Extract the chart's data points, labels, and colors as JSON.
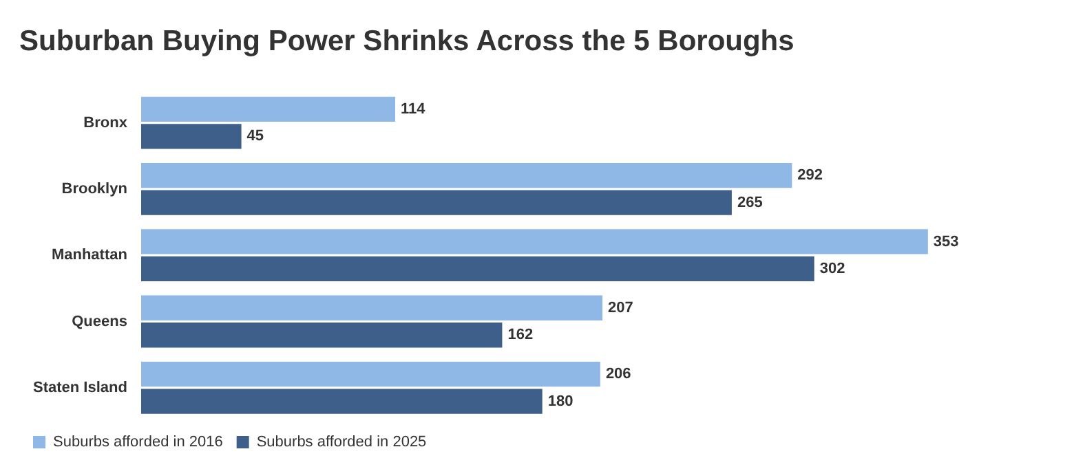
{
  "chart_data": {
    "type": "bar",
    "orientation": "horizontal",
    "title": "Suburban Buying Power Shrinks Across the 5 Boroughs",
    "categories": [
      "Bronx",
      "Brooklyn",
      "Manhattan",
      "Queens",
      "Staten Island"
    ],
    "series": [
      {
        "name": "Suburbs afforded in 2016",
        "color": "#8fb8e6",
        "values": [
          114,
          292,
          353,
          207,
          206
        ]
      },
      {
        "name": "Suburbs afforded in 2025",
        "color": "#3e5f8a",
        "values": [
          45,
          265,
          302,
          162,
          180
        ]
      }
    ],
    "data_labels": true,
    "legend": "bottom left",
    "grid": false
  }
}
